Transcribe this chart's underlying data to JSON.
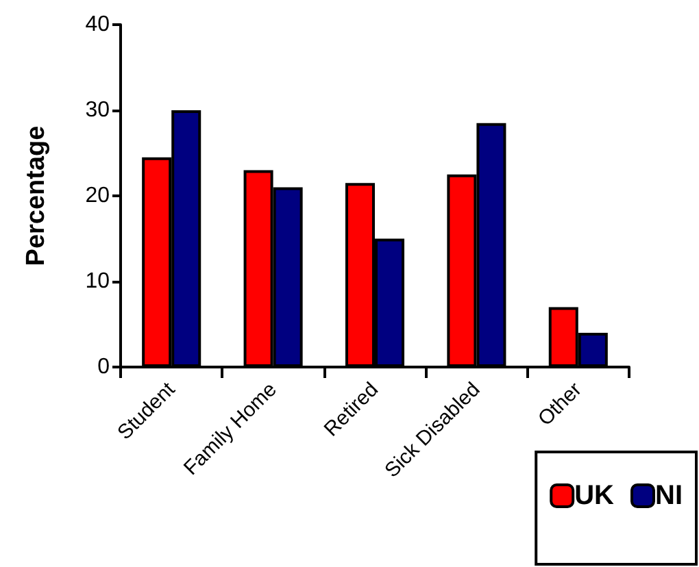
{
  "chart_data": {
    "type": "bar",
    "ylabel": "Percentage",
    "categories": [
      "Student",
      "Family Home",
      "Retired",
      "Sick Disabled",
      "Other"
    ],
    "series": [
      {
        "name": "UK",
        "color": "#ff0000",
        "values": [
          24.5,
          23,
          21.5,
          22.5,
          7
        ]
      },
      {
        "name": "NI",
        "color": "#000080",
        "values": [
          30,
          21,
          15,
          28.5,
          4
        ]
      }
    ],
    "ylim": [
      0,
      40
    ],
    "yticks": [
      0,
      10,
      20,
      30,
      40
    ],
    "grid": false,
    "legend": "bottom right"
  }
}
